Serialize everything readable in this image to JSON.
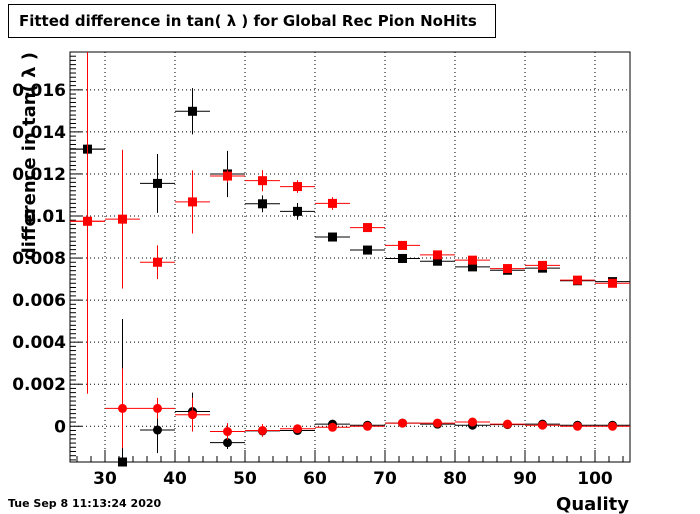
{
  "chart_data": {
    "type": "scatter",
    "title": "Fitted difference in tan( λ ) for Global Rec Pion NoHits",
    "xlabel": "Quality",
    "ylabel": "difference in tan( λ )",
    "xlim": [
      25,
      105
    ],
    "ylim": [
      -0.0017,
      0.0178
    ],
    "x_ticks": [
      30,
      40,
      50,
      60,
      70,
      80,
      90,
      100
    ],
    "x_tick_labels": [
      "30",
      "40",
      "50",
      "60",
      "70",
      "80",
      "90",
      "100"
    ],
    "y_ticks": [
      0,
      0.002,
      0.004,
      0.006,
      0.008,
      0.01,
      0.012,
      0.014,
      0.016
    ],
    "y_tick_labels": [
      "0",
      "0.002",
      "0.004",
      "0.006",
      "0.008",
      "0.01",
      "0.012",
      "0.014",
      "0.016"
    ],
    "grid": true,
    "x_half_width": 2.5,
    "series": [
      {
        "color": "#000000",
        "marker": "square",
        "x": [
          27.5,
          32.5,
          37.5,
          42.5,
          47.5,
          52.5,
          57.5,
          62.5,
          67.5,
          72.5,
          77.5,
          82.5,
          87.5,
          92.5,
          97.5,
          102.5
        ],
        "y": [
          0.01318,
          -0.0017,
          0.01155,
          0.01498,
          0.012,
          0.01058,
          0.01022,
          0.009,
          0.00838,
          0.00798,
          0.00785,
          0.00758,
          0.00742,
          0.00752,
          0.00692,
          0.00688
        ],
        "yerr": [
          0.0005,
          0.0035,
          0.0014,
          0.0011,
          0.0011,
          0.0004,
          0.0004,
          0.0002,
          0.0002,
          0.0001,
          0.0001,
          0.0001,
          0.0001,
          0.0001,
          0.0001,
          0.0001
        ]
      },
      {
        "color": "#ff0000",
        "marker": "square",
        "x": [
          27.5,
          32.5,
          37.5,
          42.5,
          47.5,
          52.5,
          57.5,
          62.5,
          67.5,
          72.5,
          77.5,
          82.5,
          87.5,
          92.5,
          97.5,
          102.5
        ],
        "y": [
          0.00975,
          0.00985,
          0.0078,
          0.01067,
          0.0119,
          0.01168,
          0.0114,
          0.0106,
          0.00945,
          0.0086,
          0.00815,
          0.0079,
          0.0075,
          0.00765,
          0.00695,
          0.0068
        ],
        "yerr": [
          0.0082,
          0.0033,
          0.0008,
          0.0015,
          0.0003,
          0.0005,
          0.0003,
          0.0003,
          0.0002,
          0.0001,
          0.0001,
          0.0001,
          0.0001,
          0.0001,
          0.0001,
          0.0001
        ]
      },
      {
        "color": "#000000",
        "marker": "circle",
        "x": [
          27.5,
          32.5,
          37.5,
          42.5,
          47.5,
          52.5,
          57.5,
          62.5,
          67.5,
          72.5,
          77.5,
          82.5,
          87.5,
          92.5,
          97.5,
          102.5
        ],
        "y": [
          0.01318,
          -0.0017,
          -0.00018,
          0.0007,
          -0.00078,
          -0.00022,
          -0.0002,
          0.0001,
          5e-05,
          0.00015,
          0.0001,
          5e-05,
          8e-05,
          0.0001,
          5e-05,
          5e-05
        ],
        "yerr": [
          0.0005,
          0.0068,
          0.0011,
          0.0009,
          0.0003,
          0.0002,
          0.0002,
          0.0001,
          0.0001,
          0.0001,
          0.0001,
          0.0001,
          0.0001,
          0.0001,
          0.0001,
          0.0001
        ]
      },
      {
        "color": "#ff0000",
        "marker": "circle",
        "x": [
          27.5,
          32.5,
          37.5,
          42.5,
          47.5,
          52.5,
          57.5,
          62.5,
          67.5,
          72.5,
          77.5,
          82.5,
          87.5,
          92.5,
          97.5,
          102.5
        ],
        "y": [
          0.00975,
          0.00085,
          0.00085,
          0.00055,
          -0.00025,
          -0.0002,
          -0.00012,
          -5e-05,
          0.0,
          0.00015,
          0.00015,
          0.0002,
          0.0001,
          5e-05,
          0.0,
          0.0
        ],
        "yerr": [
          0.0082,
          0.0019,
          0.0005,
          0.0008,
          0.0004,
          0.0003,
          0.0002,
          0.0001,
          0.0001,
          0.0001,
          0.0001,
          0.0001,
          0.0001,
          0.0001,
          0.0001,
          0.0001
        ]
      }
    ]
  },
  "footer": {
    "date": "Tue Sep  8 11:13:24 2020"
  }
}
